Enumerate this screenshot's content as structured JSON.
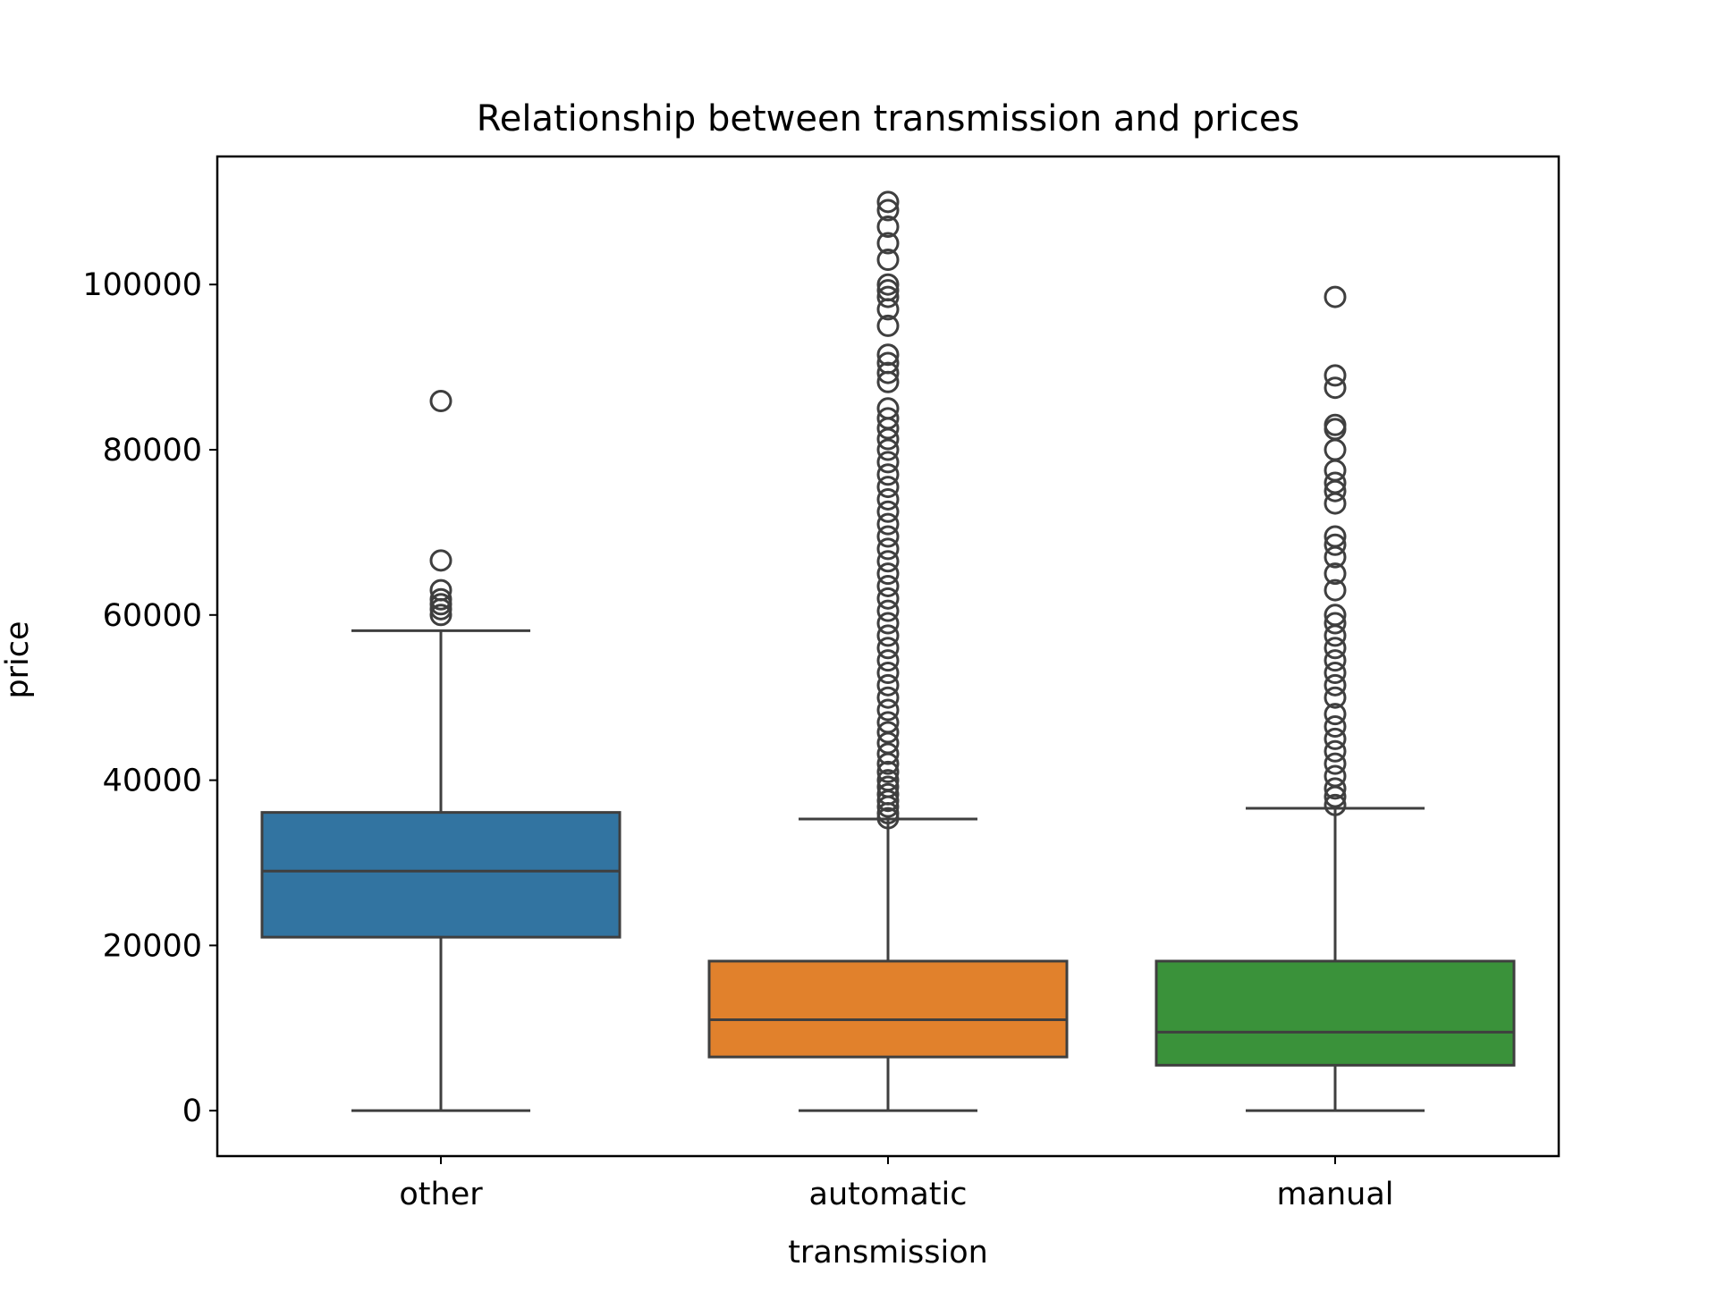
{
  "chart_data": {
    "type": "box",
    "title": "Relationship between transmission and prices",
    "xlabel": "transmission",
    "ylabel": "price",
    "ylim": [
      -5500,
      115500
    ],
    "yticks": [
      0,
      20000,
      40000,
      60000,
      80000,
      100000
    ],
    "ytick_labels": [
      "0",
      "20000",
      "40000",
      "60000",
      "80000",
      "100000"
    ],
    "grid": false,
    "legend": "none",
    "categories": [
      "other",
      "automatic",
      "manual"
    ],
    "boxes": [
      {
        "category": "other",
        "color": "#3274a1",
        "whisker_low": 0,
        "q1": 21000,
        "median": 29000,
        "q3": 36100,
        "whisker_high": 58100,
        "outliers": [
          60000,
          60700,
          61300,
          61900,
          63000,
          66600,
          85900
        ]
      },
      {
        "category": "automatic",
        "color": "#e1812c",
        "whisker_low": 0,
        "q1": 6500,
        "median": 11000,
        "q3": 18100,
        "whisker_high": 35300,
        "outliers": [
          35400,
          36000,
          36800,
          37500,
          38300,
          39200,
          40000,
          41000,
          42000,
          43200,
          44500,
          45800,
          47000,
          48500,
          50000,
          51500,
          53000,
          54500,
          56000,
          57500,
          59000,
          60500,
          62000,
          63500,
          65000,
          66500,
          68000,
          69500,
          71000,
          72500,
          74000,
          75500,
          77000,
          78500,
          80000,
          81300,
          82600,
          83800,
          85000,
          88200,
          89300,
          90500,
          91500,
          95000,
          97000,
          98500,
          99300,
          100000,
          103000,
          105000,
          107000,
          109000,
          110000
        ]
      },
      {
        "category": "manual",
        "color": "#3a923a",
        "whisker_low": 0,
        "q1": 5500,
        "median": 9500,
        "q3": 18100,
        "whisker_high": 36600,
        "outliers": [
          37000,
          38000,
          39000,
          40500,
          42000,
          43500,
          45000,
          46500,
          48000,
          50000,
          51500,
          53000,
          54500,
          56000,
          57500,
          59000,
          60000,
          63000,
          65000,
          67000,
          68500,
          69500,
          73500,
          75000,
          76000,
          77500,
          80000,
          82500,
          83000,
          87500,
          89000,
          98500
        ]
      }
    ]
  }
}
